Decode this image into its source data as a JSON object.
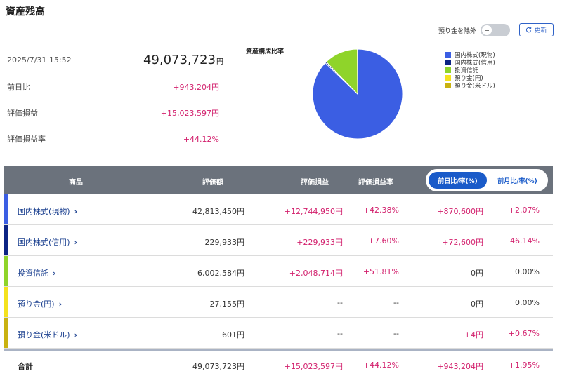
{
  "page": {
    "title": "資産残高"
  },
  "controls": {
    "exclude_deposits_label": "預り金を除外",
    "refresh_label": "更新"
  },
  "summary": {
    "datetime": "2025/7/31 15:52",
    "total_value": "49,073,723",
    "total_unit": "円",
    "rows": [
      {
        "label": "前日比",
        "value": "+943,204円"
      },
      {
        "label": "評価損益",
        "value": "+15,023,597円"
      },
      {
        "label": "評価損益率",
        "value": "+44.12%"
      }
    ]
  },
  "composition": {
    "title": "資産構成比率",
    "legend": [
      {
        "label": "国内株式(現物)",
        "color": "#3b5ee3"
      },
      {
        "label": "国内株式(信用)",
        "color": "#0c2484"
      },
      {
        "label": "投資信託",
        "color": "#8fd42a"
      },
      {
        "label": "預り金(円)",
        "color": "#f4e21d"
      },
      {
        "label": "預り金(米ドル)",
        "color": "#c9b211"
      }
    ]
  },
  "chart_data": {
    "type": "pie",
    "title": "資産構成比率",
    "categories": [
      "国内株式(現物)",
      "国内株式(信用)",
      "投資信託",
      "預り金(円)",
      "預り金(米ドル)"
    ],
    "values": [
      42813450,
      229933,
      6002584,
      27155,
      601
    ],
    "colors": [
      "#3b5ee3",
      "#0c2484",
      "#8fd42a",
      "#f4e21d",
      "#c9b211"
    ],
    "legend_position": "right"
  },
  "table": {
    "headers": {
      "product": "商品",
      "value": "評価額",
      "pl": "評価損益",
      "pl_rate": "評価損益率"
    },
    "period_options": [
      {
        "label": "前日比/率(%)",
        "active": true
      },
      {
        "label": "前月比/率(%)",
        "active": false
      }
    ],
    "rows": [
      {
        "name": "国内株式(現物)",
        "color": "#3b5ee3",
        "value": "42,813,450円",
        "pl": "+12,744,950円",
        "pl_rate": "+42.38%",
        "change": "+870,600円",
        "change_rate": "+2.07%"
      },
      {
        "name": "国内株式(信用)",
        "color": "#0c2484",
        "value": "229,933円",
        "pl": "+229,933円",
        "pl_rate": "+7.60%",
        "change": "+72,600円",
        "change_rate": "+46.14%"
      },
      {
        "name": "投資信託",
        "color": "#8fd42a",
        "value": "6,002,584円",
        "pl": "+2,048,714円",
        "pl_rate": "+51.81%",
        "change": "0円",
        "change_rate": "0.00%"
      },
      {
        "name": "預り金(円)",
        "color": "#f4e21d",
        "value": "27,155円",
        "pl": "--",
        "pl_rate": "--",
        "change": "0円",
        "change_rate": "0.00%"
      },
      {
        "name": "預り金(米ドル)",
        "color": "#c9b211",
        "value": "601円",
        "pl": "--",
        "pl_rate": "--",
        "change": "+4円",
        "change_rate": "+0.67%"
      }
    ],
    "total": {
      "name": "合計",
      "value": "49,073,723円",
      "pl": "+15,023,597円",
      "pl_rate": "+44.12%",
      "change": "+943,204円",
      "change_rate": "+1.95%"
    }
  }
}
